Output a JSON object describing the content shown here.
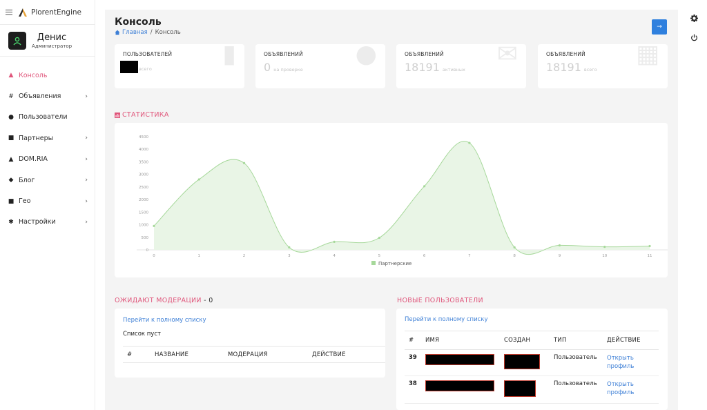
{
  "brand": {
    "name": "PlorentEngine"
  },
  "profile": {
    "name": "Денис",
    "role": "Администратор"
  },
  "sidebar": {
    "items": [
      {
        "label": "Консоль",
        "icon": "dashboard-icon",
        "active": true,
        "chevron": ""
      },
      {
        "label": "Объявления",
        "icon": "listings-icon",
        "active": false,
        "chevron": "›"
      },
      {
        "label": "Пользователи",
        "icon": "users-icon",
        "active": false,
        "chevron": ""
      },
      {
        "label": "Партнеры",
        "icon": "partners-icon",
        "active": false,
        "chevron": "›"
      },
      {
        "label": "DOM.RIA",
        "icon": "home-icon",
        "active": false,
        "chevron": "›"
      },
      {
        "label": "Блог",
        "icon": "blog-icon",
        "active": false,
        "chevron": "›"
      },
      {
        "label": "Гео",
        "icon": "geo-icon",
        "active": false,
        "chevron": "›"
      },
      {
        "label": "Настройки",
        "icon": "settings-icon",
        "active": false,
        "chevron": "›"
      }
    ]
  },
  "header": {
    "title": "Консоль",
    "breadcrumb": {
      "home": "Главная",
      "separator": "/",
      "current": "Консоль"
    },
    "action_button": "→"
  },
  "stats": [
    {
      "label": "ПОЛЬЗОВАТЕЛЕЙ",
      "value": "",
      "sub": "всего",
      "icon": "traffic-light-icon"
    },
    {
      "label": "ОБЪЯВЛЕНИЙ",
      "value": "0",
      "sub": "на проверке",
      "icon": "globe-icon"
    },
    {
      "label": "ОБЪЯВЛЕНИЙ",
      "value": "18191",
      "sub": "активных",
      "icon": "envelope-icon"
    },
    {
      "label": "ОБЪЯВЛЕНИЙ",
      "value": "18191",
      "sub": "всего",
      "icon": "cart-icon"
    }
  ],
  "statistics": {
    "title": "СТАТИСТИКА"
  },
  "chart_data": {
    "type": "area",
    "title": "",
    "xlabel": "",
    "ylabel": "",
    "x": [
      0,
      1,
      2,
      3,
      4,
      5,
      6,
      7,
      8,
      9,
      10,
      11
    ],
    "y_ticks": [
      0,
      500,
      1000,
      1500,
      2000,
      2500,
      3000,
      3500,
      4000,
      4500
    ],
    "ylim": [
      0,
      4500
    ],
    "grid": false,
    "legend": "bottom-center",
    "series": [
      {
        "name": "Партнерские",
        "color": "#a6d89a",
        "values": [
          950,
          2800,
          3450,
          100,
          320,
          480,
          2530,
          4250,
          100,
          180,
          120,
          150
        ]
      }
    ]
  },
  "moderation": {
    "title": "ОЖИДАЮТ МОДЕРАЦИИ",
    "count": "- 0",
    "link": "Перейти к полному списку",
    "empty": "Список пуст",
    "columns": [
      "#",
      "НАЗВАНИЕ",
      "МОДЕРАЦИЯ",
      "ДЕЙСТВИЕ"
    ]
  },
  "new_users": {
    "title": "НОВЫЕ ПОЛЬЗОВАТЕЛИ",
    "link": "Перейти к полному списку",
    "columns": [
      "#",
      "ИМЯ",
      "СОЗДАН",
      "ТИП",
      "ДЕЙСТВИЕ"
    ],
    "rows": [
      {
        "id": "39",
        "type": "Пользователь",
        "action": "Открыть профиль"
      },
      {
        "id": "38",
        "type": "Пользователь",
        "action": "Открыть профиль"
      }
    ]
  },
  "colors": {
    "accent": "#e0567b",
    "link": "#3d7fd6",
    "button": "#2f80de",
    "chart_fill": "#e9f5e6",
    "chart_line": "#a6d89a"
  }
}
